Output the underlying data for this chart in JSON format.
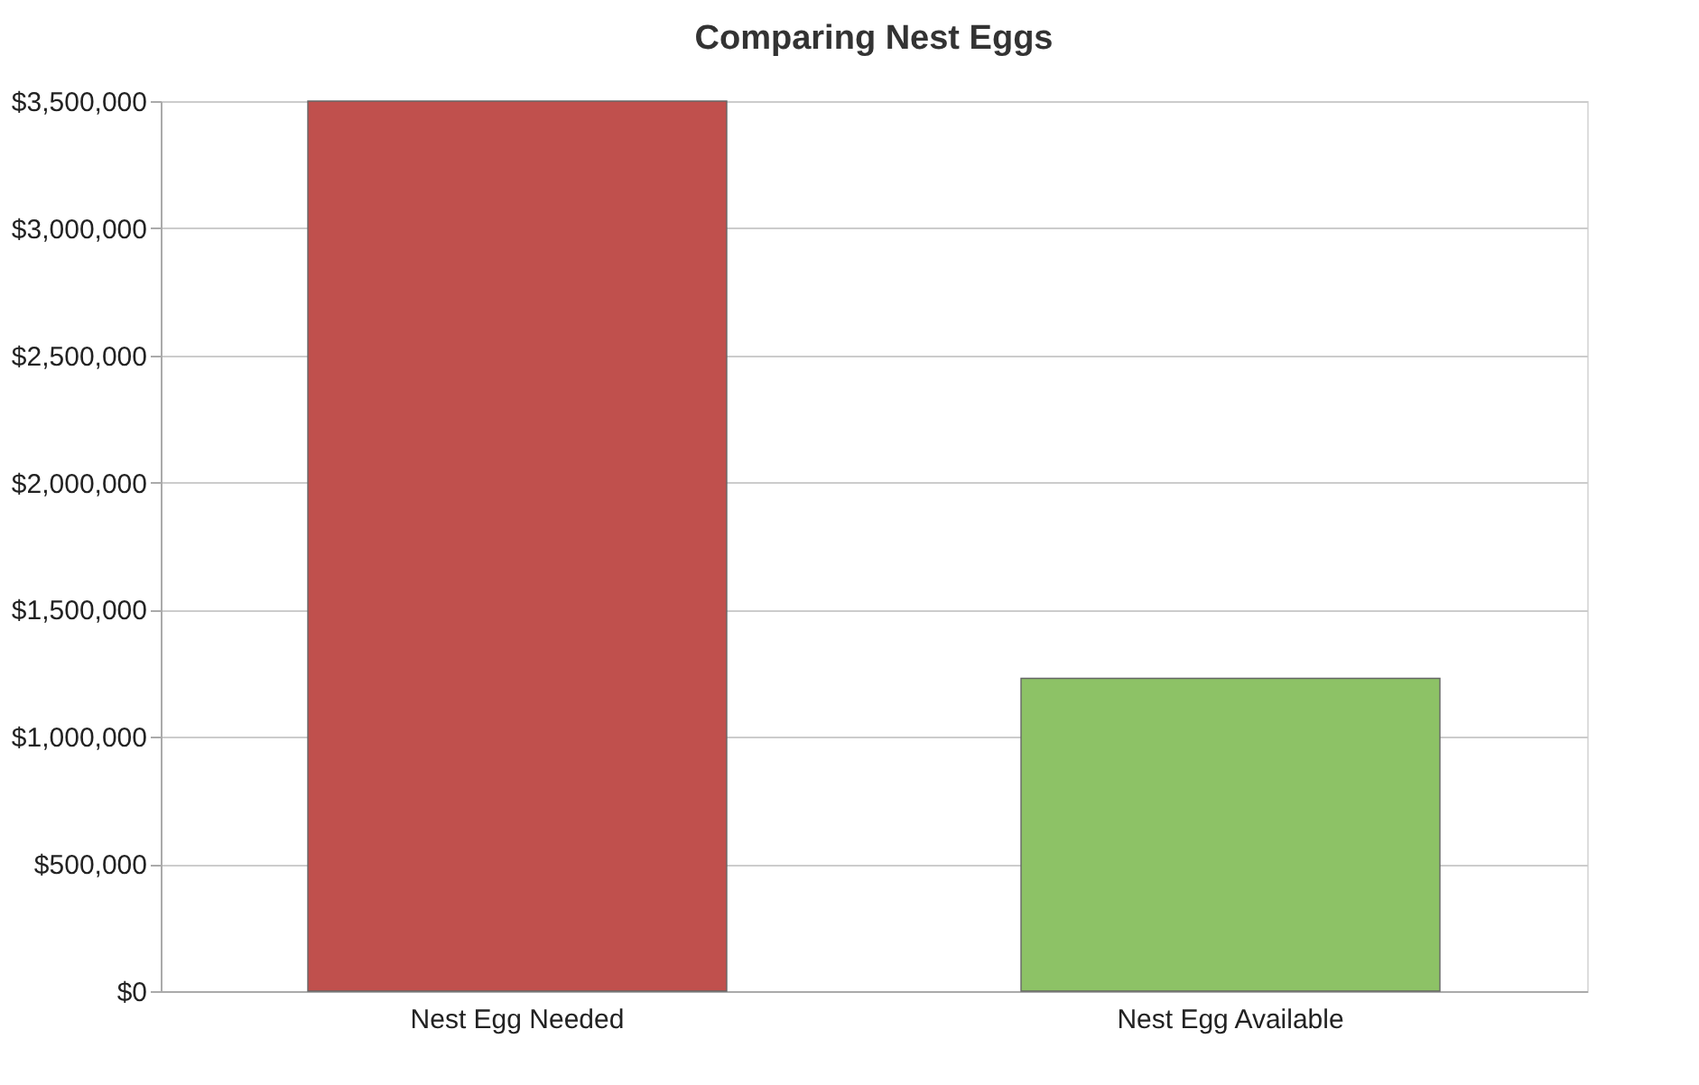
{
  "chart_data": {
    "type": "bar",
    "title": "Comparing Nest Eggs",
    "categories": [
      "Nest Egg Needed",
      "Nest Egg Available"
    ],
    "values": [
      3500000,
      1230000
    ],
    "colors": [
      "#c0504d",
      "#8dc266"
    ],
    "ylim": [
      0,
      3500000
    ],
    "yticks": [
      {
        "value": 0,
        "label": "$0"
      },
      {
        "value": 500000,
        "label": "$500,000"
      },
      {
        "value": 1000000,
        "label": "$1,000,000"
      },
      {
        "value": 1500000,
        "label": "$1,500,000"
      },
      {
        "value": 2000000,
        "label": "$2,000,000"
      },
      {
        "value": 2500000,
        "label": "$2,500,000"
      },
      {
        "value": 3000000,
        "label": "$3,000,000"
      },
      {
        "value": 3500000,
        "label": "$3,500,000"
      }
    ],
    "grid": "y"
  }
}
